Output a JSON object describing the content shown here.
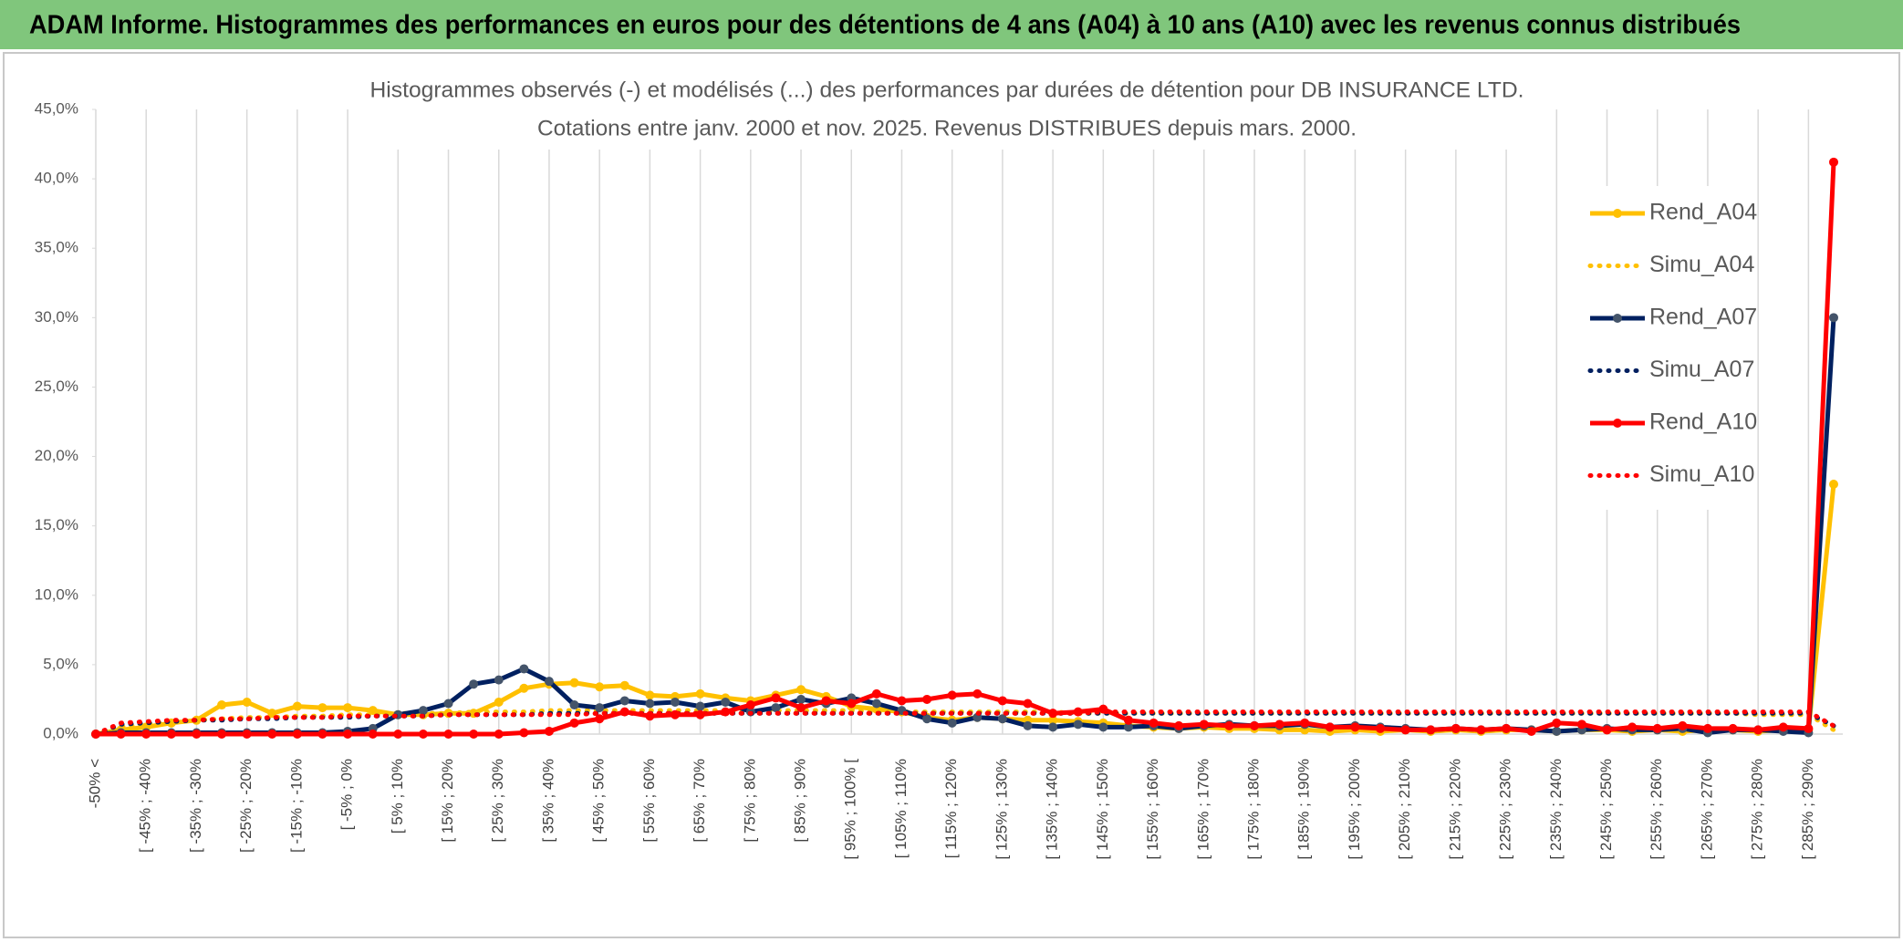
{
  "chart_data": {
    "type": "line",
    "banner": "ADAM Informe. Histogrammes des performances en euros pour des détentions de 4 ans (A04) à 10 ans (A10) avec les revenus connus distribués",
    "title": "Histogrammes observés (-) et modélisés (...) des performances par durées de détention pour DB INSURANCE LTD.",
    "subtitle": "Cotations entre janv. 2000 et nov. 2025. Revenus DISTRIBUES depuis mars. 2000.",
    "categories": [
      "-50% <",
      null,
      "[ -45% ; -40%",
      null,
      "[ -35% ; -30%",
      null,
      "[ -25% ; -20%",
      null,
      "[ -15% ; -10%",
      null,
      "[ -5% ; 0%",
      null,
      "[ 5% ; 10%",
      null,
      "[ 15% ; 20%",
      null,
      "[ 25% ; 30%",
      null,
      "[ 35% ; 40%",
      null,
      "[ 45% ; 50%",
      null,
      "[ 55% ; 60%",
      null,
      "[ 65% ; 70%",
      null,
      "[ 75% ; 80%",
      null,
      "[ 85% ; 90%",
      null,
      "[ 95% ; 100% [",
      null,
      "[ 105% ; 110%",
      null,
      "[ 115% ; 120%",
      null,
      "[ 125% ; 130%",
      null,
      "[ 135% ; 140%",
      null,
      "[ 145% ; 150%",
      null,
      "[ 155% ; 160%",
      null,
      "[ 165% ; 170%",
      null,
      "[ 175% ; 180%",
      null,
      "[ 185% ; 190%",
      null,
      "[ 195% ; 200%",
      null,
      "[ 205% ; 210%",
      null,
      "[ 215% ; 220%",
      null,
      "[ 225% ; 230%",
      null,
      "[ 235% ; 240%",
      null,
      "[ 245% ; 250%",
      null,
      "[ 255% ; 260%",
      null,
      "[ 265% ; 270%",
      null,
      "[ 275% ; 280%",
      null,
      "[ 285% ; 290%",
      null
    ],
    "series": [
      {
        "name": "Rend_A04",
        "color": "#FFC000",
        "line_style": "solid",
        "markers": true,
        "marker_color": "#FFC000",
        "values": [
          0,
          0.3,
          0.5,
          0.8,
          1.0,
          2.1,
          2.3,
          1.5,
          2.0,
          1.9,
          1.9,
          1.7,
          1.4,
          1.4,
          1.5,
          1.5,
          2.3,
          3.3,
          3.6,
          3.7,
          3.4,
          3.5,
          2.8,
          2.7,
          2.9,
          2.6,
          2.4,
          2.8,
          3.2,
          2.7,
          2.0,
          1.8,
          1.6,
          1.2,
          1.0,
          1.2,
          1.1,
          1.0,
          1.0,
          0.9,
          0.8,
          0.6,
          0.5,
          0.4,
          0.5,
          0.4,
          0.4,
          0.3,
          0.3,
          0.2,
          0.3,
          0.2,
          0.3,
          0.2,
          0.3,
          0.2,
          0.3,
          0.3,
          0.2,
          0.3,
          0.3,
          0.2,
          0.3,
          0.2,
          0.3,
          0.3,
          0.2,
          0.3,
          0.3,
          18.0
        ]
      },
      {
        "name": "Simu_A04",
        "color": "#FFC000",
        "line_style": "dotted",
        "markers": false,
        "values": [
          0,
          0.5,
          0.7,
          0.9,
          1.0,
          1.1,
          1.2,
          1.2,
          1.3,
          1.3,
          1.4,
          1.4,
          1.5,
          1.5,
          1.5,
          1.6,
          1.6,
          1.6,
          1.7,
          1.7,
          1.7,
          1.7,
          1.7,
          1.7,
          1.7,
          1.7,
          1.7,
          1.7,
          1.7,
          1.7,
          1.7,
          1.6,
          1.6,
          1.6,
          1.6,
          1.6,
          1.6,
          1.6,
          1.6,
          1.5,
          1.5,
          1.5,
          1.5,
          1.5,
          1.5,
          1.5,
          1.5,
          1.5,
          1.5,
          1.5,
          1.5,
          1.5,
          1.5,
          1.5,
          1.5,
          1.5,
          1.5,
          1.5,
          1.5,
          1.5,
          1.5,
          1.5,
          1.5,
          1.5,
          1.5,
          1.5,
          1.4,
          1.4,
          1.4,
          0.3
        ]
      },
      {
        "name": "Rend_A07",
        "color": "#002060",
        "line_style": "solid",
        "markers": true,
        "marker_color": "#44546A",
        "values": [
          0,
          0.1,
          0.1,
          0.1,
          0.1,
          0.1,
          0.1,
          0.1,
          0.1,
          0.1,
          0.2,
          0.4,
          1.4,
          1.7,
          2.2,
          3.6,
          3.9,
          4.7,
          3.8,
          2.1,
          1.9,
          2.4,
          2.2,
          2.3,
          2.0,
          2.3,
          1.6,
          1.9,
          2.5,
          2.2,
          2.6,
          2.2,
          1.7,
          1.1,
          0.8,
          1.2,
          1.1,
          0.6,
          0.5,
          0.7,
          0.5,
          0.5,
          0.6,
          0.4,
          0.6,
          0.7,
          0.6,
          0.6,
          0.7,
          0.5,
          0.6,
          0.5,
          0.4,
          0.3,
          0.4,
          0.3,
          0.4,
          0.3,
          0.2,
          0.3,
          0.4,
          0.3,
          0.3,
          0.4,
          0.1,
          0.3,
          0.3,
          0.2,
          0.1,
          30.0
        ]
      },
      {
        "name": "Simu_A07",
        "color": "#002060",
        "line_style": "dotted",
        "markers": false,
        "values": [
          0,
          0.7,
          0.8,
          0.9,
          1.0,
          1.0,
          1.1,
          1.1,
          1.2,
          1.2,
          1.2,
          1.3,
          1.3,
          1.3,
          1.4,
          1.4,
          1.4,
          1.4,
          1.5,
          1.5,
          1.5,
          1.5,
          1.5,
          1.5,
          1.5,
          1.5,
          1.5,
          1.5,
          1.5,
          1.5,
          1.5,
          1.5,
          1.5,
          1.5,
          1.5,
          1.5,
          1.5,
          1.5,
          1.5,
          1.5,
          1.5,
          1.5,
          1.5,
          1.5,
          1.5,
          1.5,
          1.5,
          1.5,
          1.5,
          1.5,
          1.5,
          1.5,
          1.5,
          1.5,
          1.5,
          1.5,
          1.5,
          1.5,
          1.5,
          1.5,
          1.5,
          1.5,
          1.5,
          1.5,
          1.5,
          1.5,
          1.5,
          1.5,
          1.5,
          0.6
        ]
      },
      {
        "name": "Rend_A10",
        "color": "#FF0000",
        "line_style": "solid",
        "markers": true,
        "marker_color": "#FF0000",
        "values": [
          0,
          0,
          0,
          0,
          0,
          0,
          0,
          0,
          0,
          0,
          0,
          0,
          0,
          0,
          0,
          0,
          0,
          0.1,
          0.2,
          0.8,
          1.1,
          1.6,
          1.3,
          1.4,
          1.4,
          1.6,
          2.1,
          2.6,
          1.9,
          2.4,
          2.2,
          2.9,
          2.4,
          2.5,
          2.8,
          2.9,
          2.4,
          2.2,
          1.5,
          1.6,
          1.8,
          1.0,
          0.8,
          0.6,
          0.7,
          0.6,
          0.6,
          0.7,
          0.8,
          0.5,
          0.5,
          0.4,
          0.3,
          0.3,
          0.4,
          0.3,
          0.4,
          0.2,
          0.8,
          0.7,
          0.3,
          0.5,
          0.4,
          0.6,
          0.4,
          0.4,
          0.3,
          0.5,
          0.4,
          41.2
        ]
      },
      {
        "name": "Simu_A10",
        "color": "#FF0000",
        "line_style": "dotted",
        "markers": false,
        "values": [
          0,
          0.8,
          0.9,
          1.0,
          1.0,
          1.1,
          1.1,
          1.2,
          1.2,
          1.2,
          1.3,
          1.3,
          1.3,
          1.3,
          1.4,
          1.4,
          1.4,
          1.4,
          1.4,
          1.4,
          1.5,
          1.5,
          1.5,
          1.5,
          1.5,
          1.5,
          1.5,
          1.5,
          1.5,
          1.5,
          1.5,
          1.5,
          1.5,
          1.5,
          1.5,
          1.5,
          1.5,
          1.5,
          1.5,
          1.5,
          1.6,
          1.6,
          1.6,
          1.6,
          1.6,
          1.6,
          1.6,
          1.6,
          1.6,
          1.6,
          1.6,
          1.6,
          1.6,
          1.6,
          1.6,
          1.6,
          1.6,
          1.6,
          1.6,
          1.6,
          1.6,
          1.6,
          1.6,
          1.6,
          1.6,
          1.6,
          1.6,
          1.6,
          1.6,
          0.6
        ]
      }
    ],
    "ylim": [
      0,
      45
    ],
    "yticks": [
      {
        "value": 0,
        "label": "0,0%"
      },
      {
        "value": 5,
        "label": "5,0%"
      },
      {
        "value": 10,
        "label": "10,0%"
      },
      {
        "value": 15,
        "label": "15,0%"
      },
      {
        "value": 20,
        "label": "20,0%"
      },
      {
        "value": 25,
        "label": "25,0%"
      },
      {
        "value": 30,
        "label": "30,0%"
      },
      {
        "value": 35,
        "label": "35,0%"
      },
      {
        "value": 40,
        "label": "40,0%"
      },
      {
        "value": 45,
        "label": "45,0%"
      }
    ],
    "xgrid": true,
    "legend": "right"
  }
}
